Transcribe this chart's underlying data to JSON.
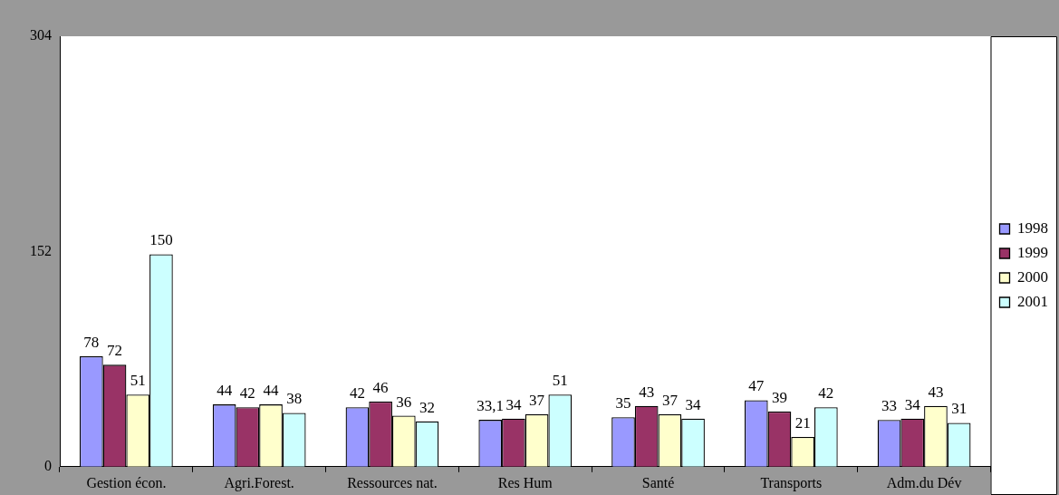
{
  "chart_data": {
    "type": "bar",
    "categories": [
      "Gestion écon.",
      "Agri.Forest.",
      "Ressources nat.",
      "Res Hum",
      "Santé",
      "Transports",
      "Adm.du Dév"
    ],
    "series": [
      {
        "name": "1998",
        "color": "#9999ff",
        "values": [
          78,
          44,
          42,
          33.1,
          35,
          47,
          33
        ],
        "value_labels": [
          "78",
          "44",
          "42",
          "33,1",
          "35",
          "47",
          "33"
        ]
      },
      {
        "name": "1999",
        "color": "#993366",
        "values": [
          72,
          42,
          46,
          34,
          43,
          39,
          34
        ]
      },
      {
        "name": "2000",
        "color": "#ffffcc",
        "values": [
          51,
          44,
          36,
          37,
          37,
          21,
          43
        ]
      },
      {
        "name": "2001",
        "color": "#ccffff",
        "values": [
          150,
          38,
          32,
          51,
          34,
          42,
          31
        ]
      }
    ],
    "ylim": [
      0,
      304
    ],
    "yticks": [
      0,
      152,
      304
    ],
    "grid": false,
    "legend": "right",
    "data_labels": true
  }
}
